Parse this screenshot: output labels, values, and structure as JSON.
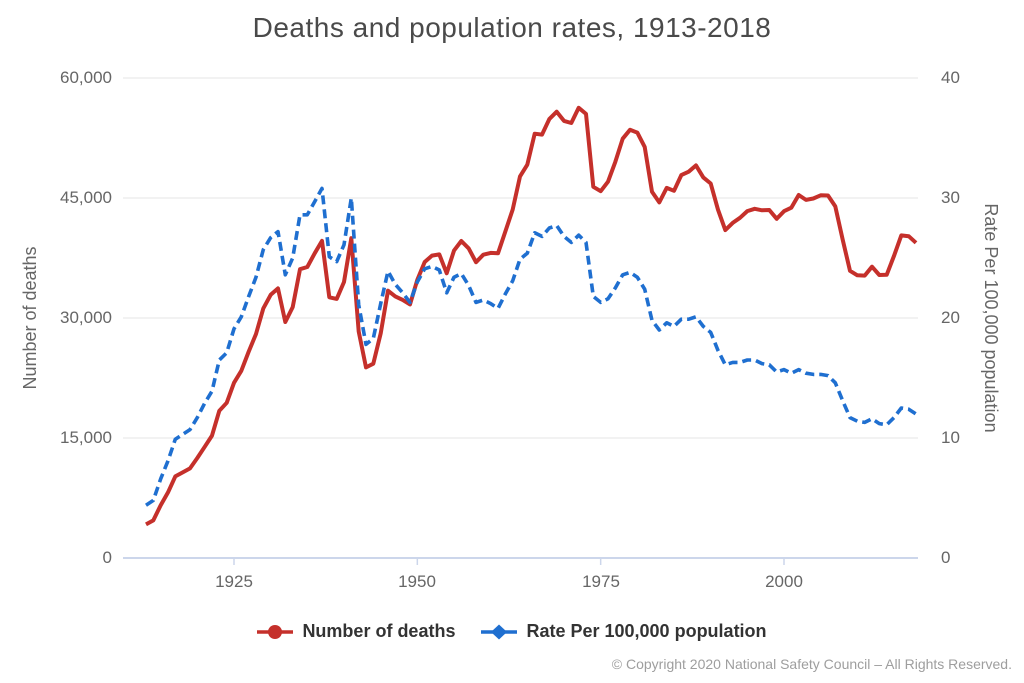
{
  "chart_data": {
    "type": "line",
    "title": "Deaths and population rates, 1913-2018",
    "x": {
      "label": "",
      "ticks": [
        "1925",
        "1950",
        "1975",
        "2000"
      ],
      "tick_years": [
        1925,
        1950,
        1975,
        2000
      ],
      "range": [
        1913,
        2018
      ]
    },
    "y_left": {
      "label": "Number of deaths",
      "ticks": [
        "60,000",
        "45,000",
        "30,000",
        "15,000",
        "0"
      ],
      "tick_values": [
        60000,
        45000,
        30000,
        15000,
        0
      ],
      "range": [
        0,
        60000
      ]
    },
    "y_right": {
      "label": "Rate Per 100,000 population",
      "ticks": [
        "40",
        "30",
        "20",
        "10",
        "0"
      ],
      "tick_values": [
        40,
        30,
        20,
        10,
        0
      ],
      "range": [
        0,
        40
      ]
    },
    "grid": true,
    "legend_position": "bottom",
    "years": [
      1913,
      1914,
      1915,
      1916,
      1917,
      1918,
      1919,
      1920,
      1921,
      1922,
      1923,
      1924,
      1925,
      1926,
      1927,
      1928,
      1929,
      1930,
      1931,
      1932,
      1933,
      1934,
      1935,
      1936,
      1937,
      1938,
      1939,
      1940,
      1941,
      1942,
      1943,
      1944,
      1945,
      1946,
      1947,
      1948,
      1949,
      1950,
      1951,
      1952,
      1953,
      1954,
      1955,
      1956,
      1957,
      1958,
      1959,
      1960,
      1961,
      1962,
      1963,
      1964,
      1965,
      1966,
      1967,
      1968,
      1969,
      1970,
      1971,
      1972,
      1973,
      1974,
      1975,
      1976,
      1977,
      1978,
      1979,
      1980,
      1981,
      1982,
      1983,
      1984,
      1985,
      1986,
      1987,
      1988,
      1989,
      1990,
      1991,
      1992,
      1993,
      1994,
      1995,
      1996,
      1997,
      1998,
      1999,
      2000,
      2001,
      2002,
      2003,
      2004,
      2005,
      2006,
      2007,
      2008,
      2009,
      2010,
      2011,
      2012,
      2013,
      2014,
      2015,
      2016,
      2017,
      2018
    ],
    "series": [
      {
        "name": "Number of deaths",
        "axis": "left",
        "color": "#c5302b",
        "style": "solid",
        "marker": "circle",
        "values": [
          4200,
          4700,
          6600,
          8200,
          10200,
          10700,
          11200,
          12500,
          13900,
          15300,
          18400,
          19400,
          21900,
          23400,
          25800,
          28000,
          31200,
          32900,
          33700,
          29500,
          31363,
          36101,
          36369,
          38089,
          39643,
          32582,
          32386,
          34501,
          39969,
          28309,
          23823,
          24282,
          28076,
          33411,
          32697,
          32259,
          31701,
          34763,
          36996,
          37794,
          37956,
          35586,
          38426,
          39628,
          38702,
          36981,
          37910,
          38137,
          38091,
          40804,
          43564,
          47700,
          49163,
          53041,
          52924,
          54862,
          55791,
          54633,
          54381,
          56278,
          55511,
          46402,
          45853,
          47038,
          49510,
          52411,
          53524,
          53172,
          51385,
          45779,
          44452,
          46263,
          45901,
          47865,
          48290,
          49078,
          47575,
          46814,
          43536,
          40982,
          41893,
          42524,
          43363,
          43649,
          43458,
          43501,
          42401,
          43354,
          43788,
          45380,
          44757,
          44933,
          45343,
          45316,
          43945,
          39790,
          35900,
          35332,
          35303,
          36415,
          35369,
          35398,
          37757,
          40327,
          40231,
          39404
        ]
      },
      {
        "name": "Rate Per 100,000 population",
        "axis": "right",
        "color": "#1f6fd0",
        "style": "dashed",
        "marker": "diamond",
        "values": [
          4.4,
          4.8,
          6.6,
          8.1,
          9.9,
          10.3,
          10.7,
          11.7,
          12.9,
          13.9,
          16.5,
          17.1,
          19.1,
          20.1,
          21.8,
          23.4,
          25.7,
          26.7,
          27.2,
          23.6,
          25.0,
          28.6,
          28.6,
          29.7,
          30.8,
          25.1,
          24.7,
          26.1,
          30.0,
          21.1,
          17.8,
          18.3,
          21.2,
          23.9,
          22.8,
          22.1,
          21.3,
          23.0,
          24.1,
          24.3,
          24.0,
          22.1,
          23.4,
          23.7,
          22.7,
          21.3,
          21.5,
          21.2,
          20.8,
          22.0,
          23.1,
          24.9,
          25.4,
          27.1,
          26.8,
          27.5,
          27.7,
          26.8,
          26.3,
          26.9,
          26.3,
          21.8,
          21.3,
          21.6,
          22.5,
          23.6,
          23.8,
          23.4,
          22.4,
          19.8,
          19.0,
          19.6,
          19.3,
          19.9,
          19.9,
          20.1,
          19.3,
          18.8,
          17.3,
          16.1,
          16.3,
          16.3,
          16.5,
          16.5,
          16.2,
          16.1,
          15.5,
          15.7,
          15.4,
          15.7,
          15.4,
          15.3,
          15.3,
          15.2,
          14.6,
          13.1,
          11.7,
          11.4,
          11.3,
          11.6,
          11.2,
          11.1,
          11.7,
          12.5,
          12.4,
          12.0
        ]
      }
    ],
    "colors": {
      "grid_line": "#e6e6e6",
      "axis_line": "#ccd6eb",
      "tick_text": "#666666",
      "title_text": "#4a4a4a",
      "legend_text": "#333333",
      "copyright_text": "#9e9e9e",
      "background": "#ffffff"
    }
  },
  "footer": {
    "copyright": "© Copyright 2020 National Safety Council – All Rights Reserved."
  }
}
